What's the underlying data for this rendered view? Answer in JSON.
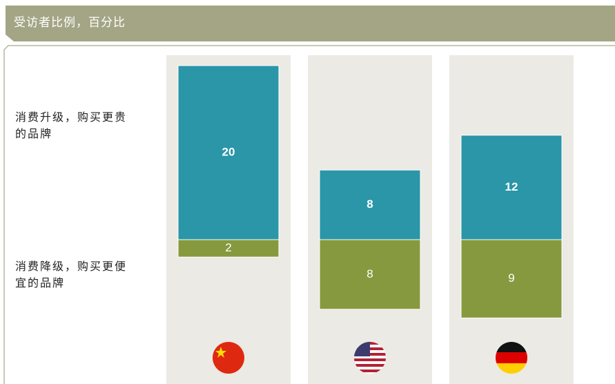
{
  "chart_data": {
    "type": "diverging-bar",
    "title": "受访者比例，百分比",
    "categories": [
      null,
      null,
      null
    ],
    "series": [
      {
        "name": "消费升级，购买更贵的品牌",
        "color": "#2a96a8",
        "values": [
          20,
          8,
          12
        ]
      },
      {
        "name": "消费降级，购买更便宜的品牌",
        "color": "#87993e",
        "values": [
          2,
          8,
          9
        ]
      }
    ]
  }
}
